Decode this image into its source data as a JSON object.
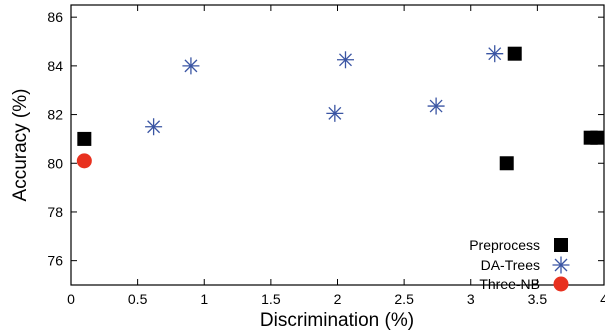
{
  "chart_data": {
    "type": "scatter",
    "title": "",
    "xlabel": "Discrimination (%)",
    "ylabel": "Accuracy (%)",
    "xlim": [
      0,
      4
    ],
    "ylim": [
      75,
      86.5
    ],
    "xticks": [
      "0",
      "0.5",
      "1",
      "1.5",
      "2",
      "2.5",
      "3",
      "3.5",
      "4"
    ],
    "yticks": [
      "76",
      "78",
      "80",
      "82",
      "84",
      "86"
    ],
    "grid": false,
    "legend_position": "bottom-right",
    "series": [
      {
        "name": "Preprocess",
        "marker": "square",
        "color": "#000000",
        "x": [
          0.1,
          3.27,
          3.33,
          3.9,
          3.95
        ],
        "y": [
          81.0,
          80.0,
          84.5,
          81.05,
          81.05
        ]
      },
      {
        "name": "DA-Trees",
        "marker": "asterisk",
        "color": "#3a55a3",
        "x": [
          0.62,
          0.9,
          1.98,
          2.06,
          2.74,
          3.18
        ],
        "y": [
          81.5,
          84.0,
          82.05,
          84.25,
          82.35,
          84.5
        ]
      },
      {
        "name": "Three-NB",
        "marker": "circle",
        "color": "#e8311f",
        "x": [
          0.1
        ],
        "y": [
          80.1
        ]
      }
    ]
  }
}
